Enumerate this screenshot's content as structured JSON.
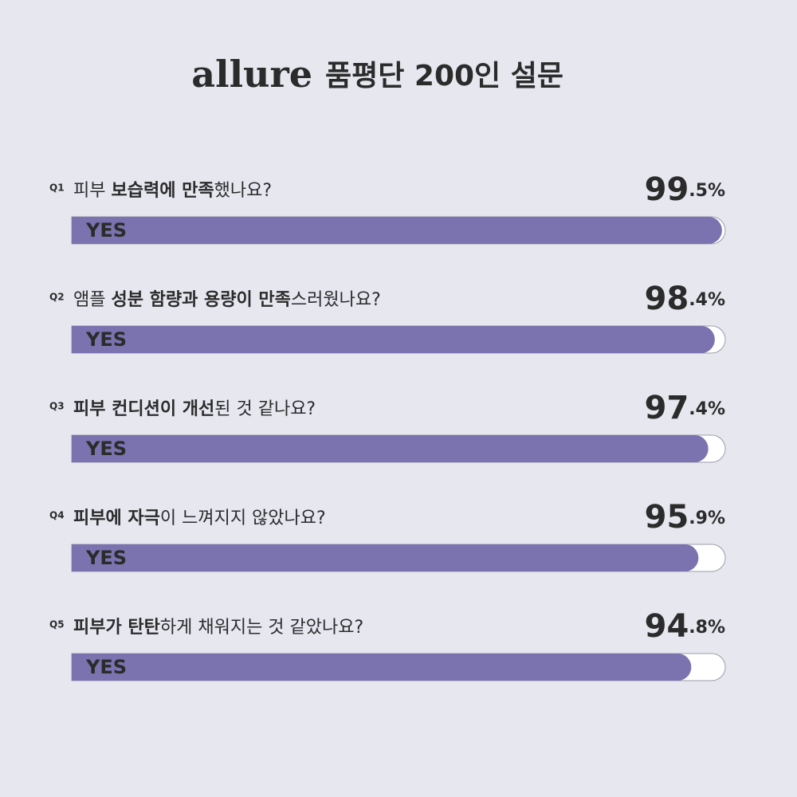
{
  "chart_data": {
    "type": "bar",
    "brand": "allure",
    "title": "품평단 200인 설문",
    "labels": [
      "Q1",
      "Q2",
      "Q3",
      "Q4",
      "Q5"
    ],
    "questions": [
      [
        {
          "text": "피부 "
        },
        {
          "text": "보습력에 만족",
          "bold": true
        },
        {
          "text": "했나요?"
        }
      ],
      [
        {
          "text": "앰플 "
        },
        {
          "text": "성분 함량과 용량이 만족",
          "bold": true
        },
        {
          "text": "스러웠나요?"
        }
      ],
      [
        {
          "text": "피부 컨디션이 개선",
          "bold": true
        },
        {
          "text": "된 것 같나요?"
        }
      ],
      [
        {
          "text": "피부에 자극",
          "bold": true
        },
        {
          "text": "이 느껴지지 않았나요?"
        }
      ],
      [
        {
          "text": "피부가 탄탄",
          "bold": true
        },
        {
          "text": "하게 채워지는 것 같았나요?"
        }
      ]
    ],
    "series": [
      {
        "name": "YES",
        "color": "#7a73b0",
        "values": [
          99.5,
          98.4,
          97.4,
          95.9,
          94.8
        ],
        "value_labels": [
          "99.5%",
          "98.4%",
          "97.4%",
          "95.9%",
          "94.8%"
        ]
      }
    ],
    "xlim": [
      0,
      100
    ]
  }
}
